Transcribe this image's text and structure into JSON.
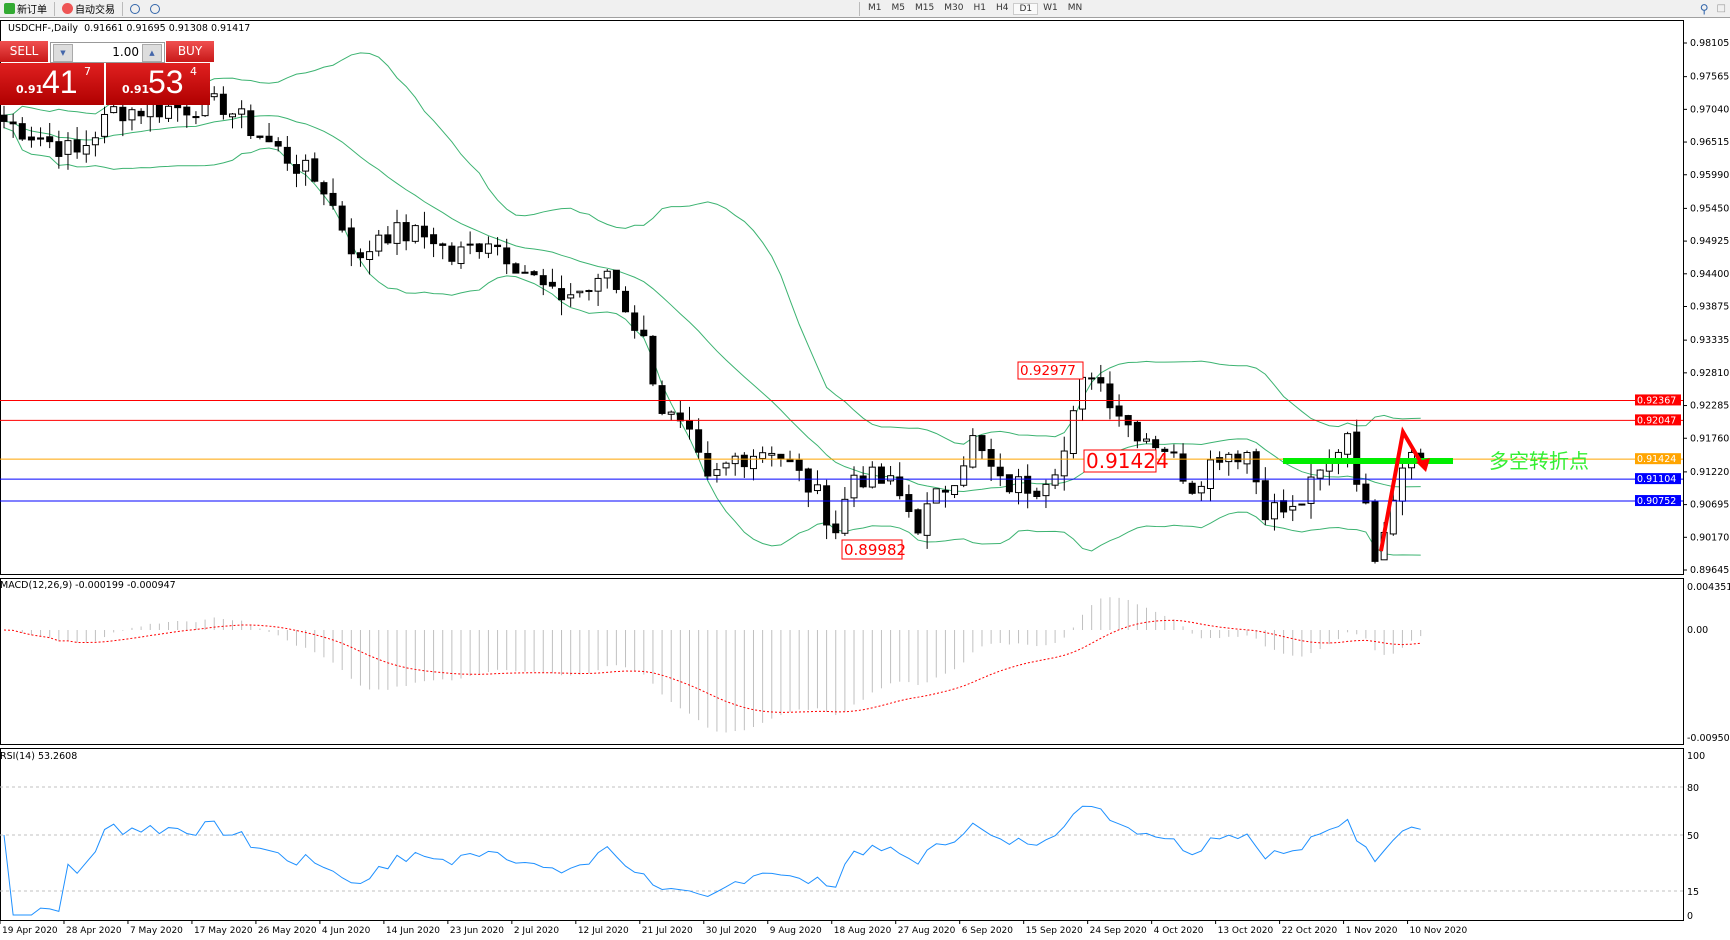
{
  "toolbar": {
    "new_order": "新订单",
    "auto_trading": "自动交易",
    "timeframes": [
      "M1",
      "M5",
      "M15",
      "M30",
      "H1",
      "H4",
      "D1",
      "W1",
      "MN"
    ],
    "active_timeframe": "D1"
  },
  "chart_header": {
    "symbol": "USDCHF-,Daily",
    "ohlc": "0.91661 0.91695 0.91308 0.91417"
  },
  "trade_panel": {
    "sell_label": "SELL",
    "buy_label": "BUY",
    "lot": "1.00",
    "sell_prefix": "0.91",
    "sell_big": "41",
    "sell_sup": "7",
    "buy_prefix": "0.91",
    "buy_big": "53",
    "buy_sup": "4"
  },
  "indicators": {
    "macd_label": "MACD(12,26,9) -0.000199 -0.000947",
    "rsi_label": "RSI(14) 53.2608"
  },
  "colors": {
    "bollinger": "#3cb371",
    "macd_hist": "#c0c0c0",
    "macd_signal": "#ff0000",
    "rsi": "#1e90ff",
    "annotation": "#ff0000",
    "pivot_bar": "#00ee00"
  },
  "chart_data": {
    "type": "candlestick",
    "symbol": "USDCHF",
    "timeframe": "Daily",
    "price_ticks": [
      "0.98105",
      "0.97565",
      "0.97040",
      "0.96515",
      "0.95990",
      "0.95450",
      "0.94925",
      "0.94400",
      "0.93875",
      "0.93335",
      "0.92810",
      "0.92285",
      "0.91760",
      "0.91220",
      "0.90695",
      "0.90170",
      "0.89645"
    ],
    "price_range": [
      0.89645,
      0.98105
    ],
    "date_ticks": [
      "19 Apr 2020",
      "28 Apr 2020",
      "7 May 2020",
      "17 May 2020",
      "26 May 2020",
      "4 Jun 2020",
      "14 Jun 2020",
      "23 Jun 2020",
      "2 Jul 2020",
      "12 Jul 2020",
      "21 Jul 2020",
      "30 Jul 2020",
      "9 Aug 2020",
      "18 Aug 2020",
      "27 Aug 2020",
      "6 Sep 2020",
      "15 Sep 2020",
      "24 Sep 2020",
      "4 Oct 2020",
      "13 Oct 2020",
      "22 Oct 2020",
      "1 Nov 2020",
      "10 Nov 2020"
    ],
    "bars": 156,
    "close_keypoints": [
      [
        0,
        0.9685
      ],
      [
        8,
        0.9632
      ],
      [
        12,
        0.9702
      ],
      [
        24,
        0.9711
      ],
      [
        29,
        0.965
      ],
      [
        35,
        0.9579
      ],
      [
        39,
        0.9455
      ],
      [
        41,
        0.9508
      ],
      [
        47,
        0.9499
      ],
      [
        49,
        0.9464
      ],
      [
        53,
        0.9499
      ],
      [
        57,
        0.9446
      ],
      [
        60,
        0.9402
      ],
      [
        65,
        0.9419
      ],
      [
        66,
        0.9446
      ],
      [
        70,
        0.9331
      ],
      [
        72,
        0.9225
      ],
      [
        75,
        0.9172
      ],
      [
        77,
        0.9101
      ],
      [
        80,
        0.9145
      ],
      [
        84,
        0.9163
      ],
      [
        89,
        0.9083
      ],
      [
        91,
        0.903
      ],
      [
        93,
        0.9119
      ],
      [
        97,
        0.9101
      ],
      [
        100,
        0.9039
      ],
      [
        104,
        0.9119
      ],
      [
        106,
        0.9172
      ],
      [
        109,
        0.9101
      ],
      [
        113,
        0.9101
      ],
      [
        116,
        0.9154
      ],
      [
        118,
        0.926
      ],
      [
        119,
        0.9287
      ],
      [
        121,
        0.9243
      ],
      [
        123,
        0.9198
      ],
      [
        127,
        0.9163
      ],
      [
        130,
        0.9101
      ],
      [
        133,
        0.9154
      ],
      [
        136,
        0.9154
      ],
      [
        138,
        0.9065
      ],
      [
        141,
        0.9057
      ],
      [
        145,
        0.9136
      ],
      [
        147,
        0.9189
      ],
      [
        148,
        0.9119
      ],
      [
        150,
        0.8995
      ],
      [
        153,
        0.9136
      ],
      [
        154,
        0.9172
      ],
      [
        155,
        0.91417
      ]
    ],
    "hlines": [
      {
        "price": 0.92367,
        "label": "0.92367",
        "color": "#ff0000"
      },
      {
        "price": 0.92047,
        "label": "0.92047",
        "color": "#ff0000"
      },
      {
        "price": 0.91424,
        "label": "0.91424",
        "color": "#ffa500"
      },
      {
        "price": 0.91104,
        "label": "0.91104",
        "color": "#0000ff"
      },
      {
        "price": 0.90752,
        "label": "0.90752",
        "color": "#0000ff"
      }
    ],
    "annotations": [
      {
        "label": "0.92977",
        "price": 0.92977,
        "bar": 119
      },
      {
        "label": "0.91424",
        "price": 0.91424,
        "bar": 119
      },
      {
        "label": "0.89982",
        "price": 0.89982,
        "bar": 93
      }
    ],
    "pivot_text": "多空转折点",
    "macd": {
      "params": "12,26,9",
      "value": -0.000199,
      "signal": -0.000947,
      "ticks": [
        "0.004351",
        "0.00",
        "-0.009504"
      ],
      "range": [
        -0.009504,
        0.004351
      ]
    },
    "rsi": {
      "period": 14,
      "value": 53.2608,
      "ticks": [
        "100",
        "80",
        "50",
        "15",
        "0"
      ],
      "levels": [
        80,
        50,
        15
      ]
    }
  }
}
